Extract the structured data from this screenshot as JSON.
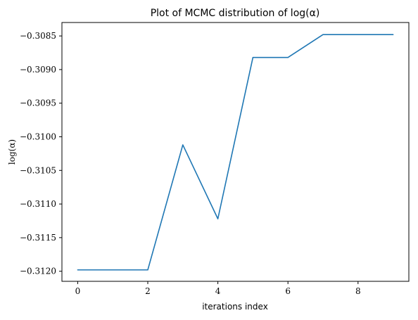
{
  "chart_data": {
    "type": "line",
    "title": "Plot of MCMC distribution of log(α)",
    "xlabel": "iterations index",
    "ylabel": "log(α)",
    "x": [
      0,
      1,
      2,
      3,
      4,
      5,
      6,
      7,
      8,
      9
    ],
    "series": [
      {
        "values": [
          -0.31198,
          -0.31198,
          -0.31198,
          -0.31012,
          -0.31122,
          -0.30882,
          -0.30882,
          -0.30848,
          -0.30848,
          -0.30848
        ],
        "color": "#1f77b4"
      }
    ],
    "xlim": [
      -0.45,
      9.45
    ],
    "ylim": [
      -0.31215,
      -0.3083
    ],
    "xticks": [
      0,
      2,
      4,
      6,
      8
    ],
    "xtick_labels": [
      "0",
      "2",
      "4",
      "6",
      "8"
    ],
    "yticks": [
      -0.312,
      -0.3115,
      -0.311,
      -0.3105,
      -0.31,
      -0.3095,
      -0.309,
      -0.3085
    ],
    "ytick_labels": [
      "−0.3120",
      "−0.3115",
      "−0.3110",
      "−0.3105",
      "−0.3100",
      "−0.3095",
      "−0.3090",
      "−0.3085"
    ],
    "grid": false,
    "legend": "none"
  }
}
